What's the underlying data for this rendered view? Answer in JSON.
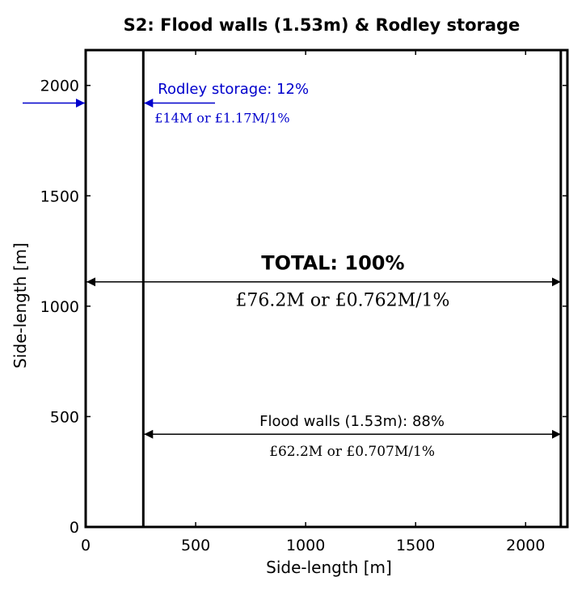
{
  "chart_data": {
    "type": "diagram",
    "title": "S2: Flood walls (1.53m) & Rodley storage",
    "xlabel": "Side-length [m]",
    "ylabel": "Side-length [m]",
    "xlim": [
      0,
      2190
    ],
    "ylim": [
      0,
      2160
    ],
    "x_ticks": [
      0,
      500,
      1000,
      1500,
      2000
    ],
    "y_ticks": [
      0,
      500,
      1000,
      1500,
      2000
    ],
    "x_tick_labels": [
      "0",
      "500",
      "1000",
      "1500",
      "2000"
    ],
    "y_tick_labels": [
      "0",
      "500",
      "1000",
      "1500",
      "2000"
    ],
    "grid": false,
    "total_side": 2160,
    "divider_x": 262,
    "colors": {
      "axes": "#000000",
      "rodley": "#0000cc"
    },
    "regions": {
      "total": {
        "label": "TOTAL: 100%",
        "cost": "£76.2M or £0.762M/1%",
        "arrow_y": 1110,
        "label_y": 1195,
        "cost_y": 1030
      },
      "flood_walls": {
        "label": "Flood walls (1.53m): 88%",
        "cost": "£62.2M or £0.707M/1%",
        "arrow_y": 420,
        "label_y": 480,
        "cost_y": 345
      },
      "rodley": {
        "label": "Rodley storage: 12%",
        "cost": "£14M or £1.17M/1%",
        "arrow_y": 1920,
        "label_y": 1985,
        "cost_y": 1855
      }
    }
  }
}
